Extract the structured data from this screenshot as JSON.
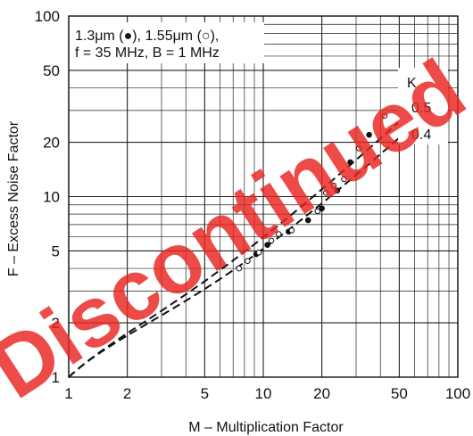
{
  "chart_data": {
    "type": "scatter",
    "xlabel": "M – Multiplication Factor",
    "ylabel": "F – Excess Noise Factor",
    "x_scale": "log",
    "y_scale": "log",
    "xlim": [
      1,
      100
    ],
    "ylim": [
      1,
      100
    ],
    "x_ticks": [
      1,
      2,
      5,
      10,
      20,
      50,
      100
    ],
    "y_ticks": [
      1,
      2,
      5,
      10,
      20,
      50,
      100
    ],
    "x_tick_labels": [
      "1",
      "2",
      "5",
      "10",
      "20",
      "50",
      "100"
    ],
    "y_tick_labels": [
      "1",
      "2",
      "5",
      "10",
      "20",
      "50",
      "100"
    ],
    "grid": true,
    "legend_lines": [
      "1.3μm (●), 1.55μm (○),",
      "f = 35 MHz, B = 1 MHz"
    ],
    "legend_position": "top-left",
    "k_header": "K",
    "series": [
      {
        "name": "1.3μm",
        "marker": "filled-circle",
        "points": [
          [
            9.2,
            4.8
          ],
          [
            10.5,
            5.4
          ],
          [
            13.5,
            6.4
          ],
          [
            17,
            7.4
          ],
          [
            20,
            8.6
          ],
          [
            24,
            10.8
          ],
          [
            28,
            15.5
          ],
          [
            35,
            22
          ]
        ]
      },
      {
        "name": "1.55μm",
        "marker": "open-circle",
        "points": [
          [
            7.5,
            4.0
          ],
          [
            8.3,
            4.4
          ],
          [
            9.5,
            4.9
          ],
          [
            11,
            5.7
          ],
          [
            12,
            6.2
          ],
          [
            14,
            6.5
          ],
          [
            19,
            8.3
          ],
          [
            21,
            10.5
          ],
          [
            23,
            11.5
          ],
          [
            26,
            12.5
          ],
          [
            31,
            18.5
          ],
          [
            42,
            28
          ]
        ]
      }
    ],
    "curves": [
      {
        "label": "0.5",
        "k": 0.5,
        "style": "dashed",
        "x_range": [
          1,
          60
        ]
      },
      {
        "label": "0.4",
        "k": 0.4,
        "style": "dashed",
        "x_range": [
          1,
          60
        ]
      }
    ]
  },
  "watermark": "Discontinued",
  "colors": {
    "watermark": "#e8231f",
    "ink": "#111111"
  }
}
